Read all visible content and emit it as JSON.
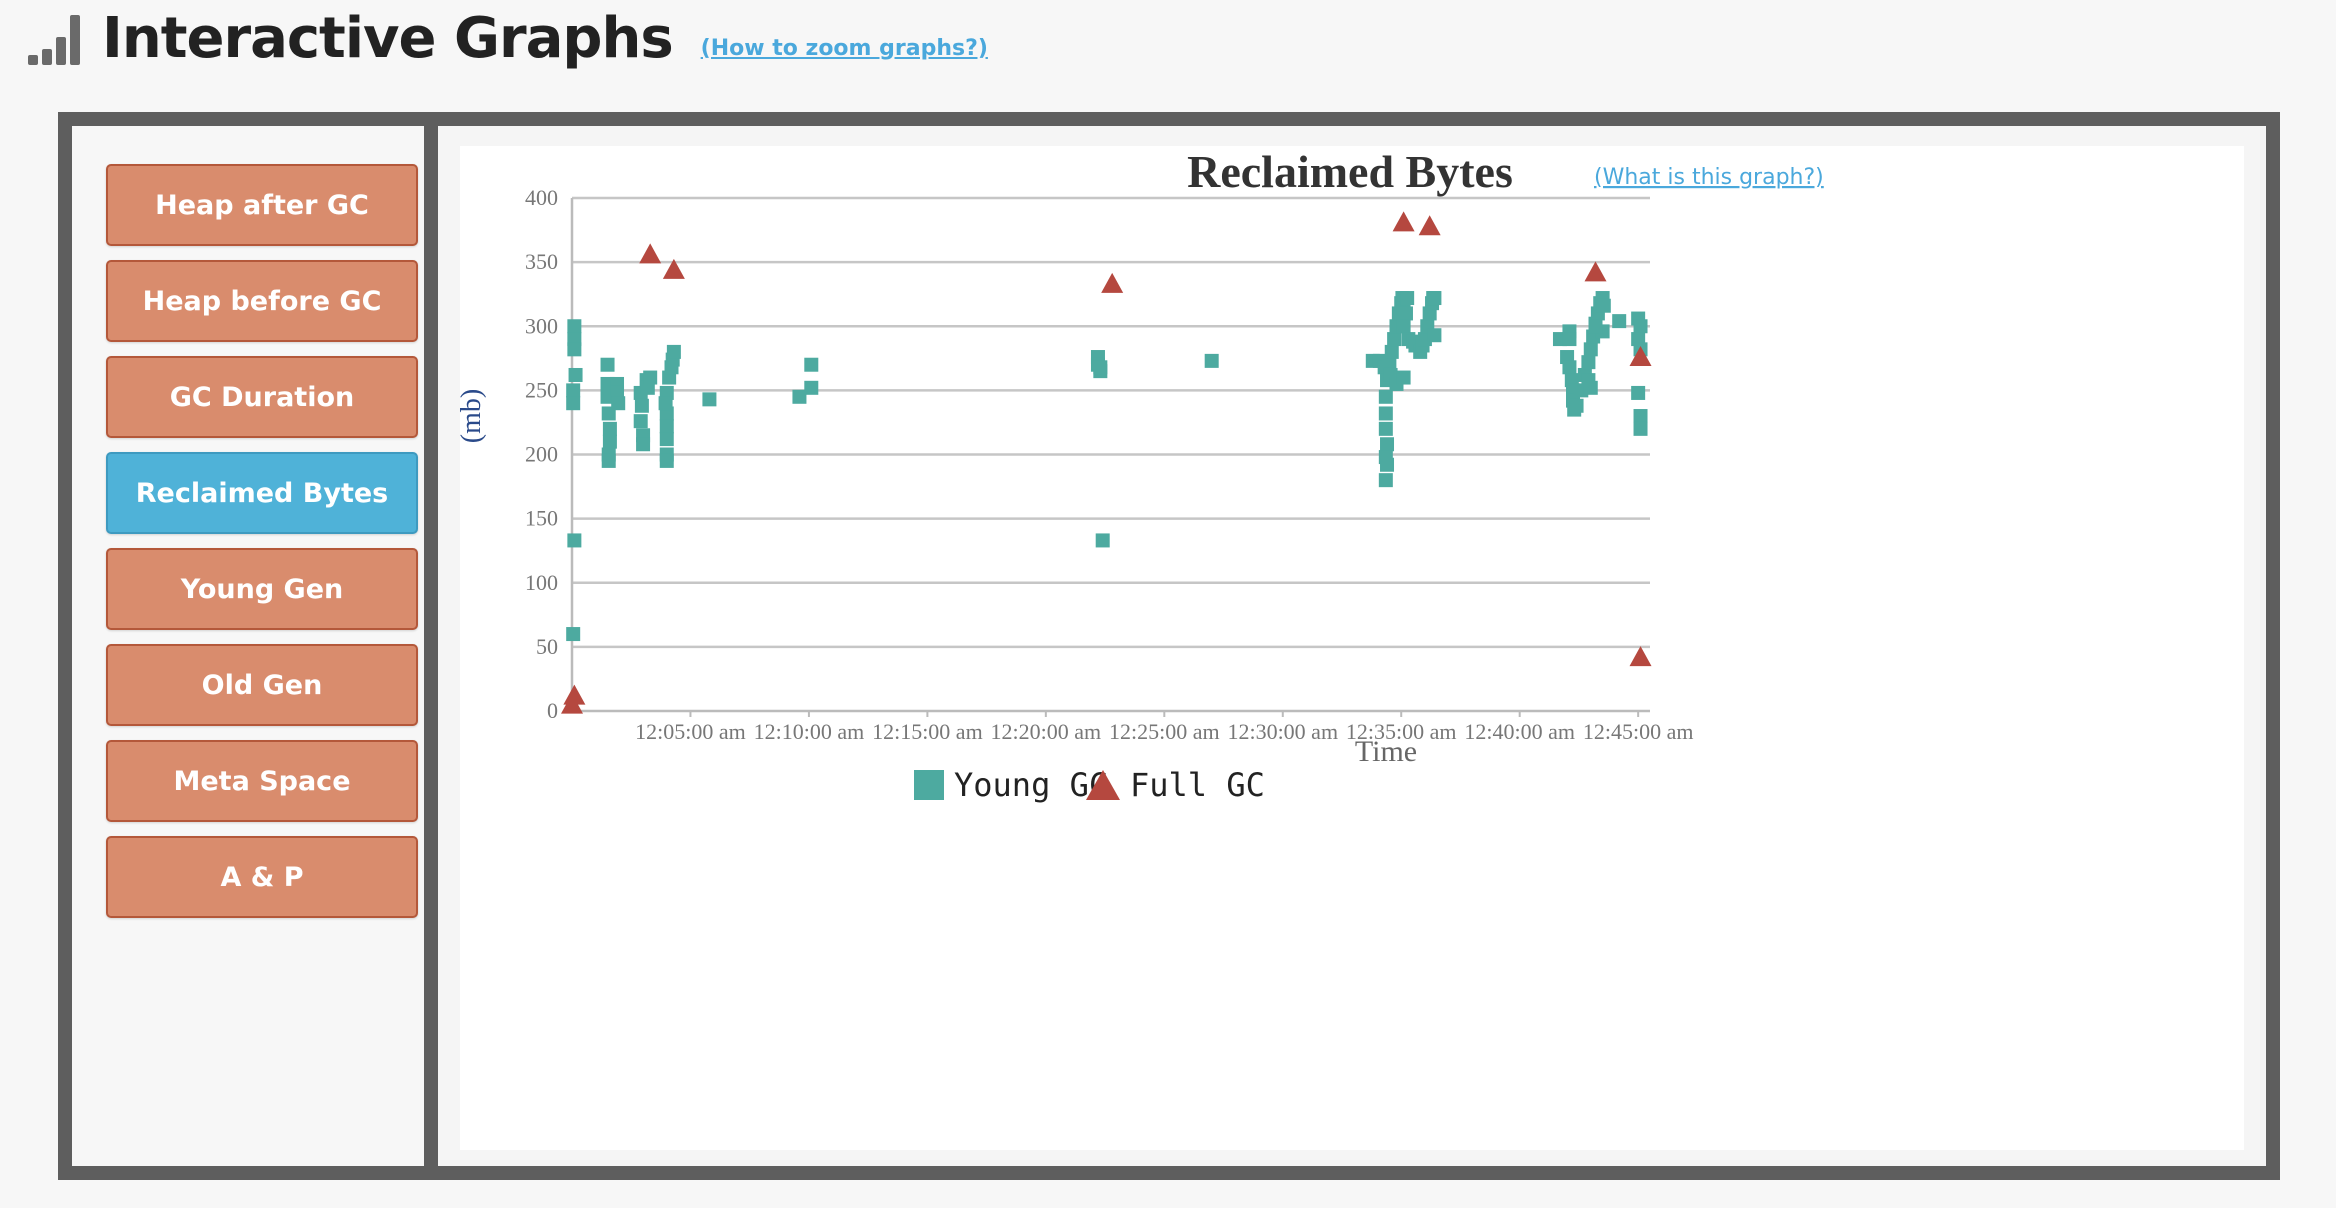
{
  "header": {
    "title": "Interactive Graphs",
    "help_link": "(How to zoom graphs?)",
    "icon": "signal-bars-icon"
  },
  "sidebar": {
    "items": [
      {
        "label": "Heap after GC",
        "active": false
      },
      {
        "label": "Heap before GC",
        "active": false
      },
      {
        "label": "GC Duration",
        "active": false
      },
      {
        "label": "Reclaimed Bytes",
        "active": true
      },
      {
        "label": "Young Gen",
        "active": false
      },
      {
        "label": "Old Gen",
        "active": false
      },
      {
        "label": "Meta Space",
        "active": false
      },
      {
        "label": "A & P",
        "active": false
      }
    ]
  },
  "colors": {
    "button": "#d98c6d",
    "button_border": "#b4583a",
    "button_active": "#4fb2d8",
    "young_gc": "#4daaa0",
    "full_gc": "#b5483f",
    "link": "#4aa8dc",
    "frame": "#5e5e5e"
  },
  "chart_data": {
    "type": "scatter",
    "title": "Reclaimed Bytes",
    "help_link": "(What is this graph?)",
    "xlabel": "Time",
    "ylabel": "(mb)",
    "x_unit": "minutes after 12:00:00 am",
    "xlim": [
      0,
      45.5
    ],
    "ylim": [
      0,
      400
    ],
    "yticks": [
      0,
      50,
      100,
      150,
      200,
      250,
      300,
      350,
      400
    ],
    "xticks": [
      {
        "x": 5,
        "label": "12:05:00 am"
      },
      {
        "x": 10,
        "label": "12:10:00 am"
      },
      {
        "x": 15,
        "label": "12:15:00 am"
      },
      {
        "x": 20,
        "label": "12:20:00 am"
      },
      {
        "x": 25,
        "label": "12:25:00 am"
      },
      {
        "x": 30,
        "label": "12:30:00 am"
      },
      {
        "x": 35,
        "label": "12:35:00 am"
      },
      {
        "x": 40,
        "label": "12:40:00 am"
      },
      {
        "x": 45,
        "label": "12:45:00 am"
      }
    ],
    "grid": true,
    "legend_position": "bottom-center",
    "series": [
      {
        "name": "Young GC",
        "marker": "square",
        "color": "#4daaa0",
        "points": [
          [
            0.1,
            300
          ],
          [
            0.1,
            290
          ],
          [
            0.1,
            282
          ],
          [
            0.15,
            262
          ],
          [
            0.05,
            250
          ],
          [
            0.05,
            240
          ],
          [
            0.1,
            133
          ],
          [
            0.05,
            60
          ],
          [
            1.5,
            270
          ],
          [
            1.5,
            255
          ],
          [
            1.5,
            245
          ],
          [
            1.55,
            232
          ],
          [
            1.6,
            220
          ],
          [
            1.6,
            210
          ],
          [
            1.55,
            200
          ],
          [
            1.55,
            195
          ],
          [
            1.9,
            255
          ],
          [
            1.9,
            248
          ],
          [
            1.95,
            240
          ],
          [
            2.9,
            248
          ],
          [
            2.95,
            238
          ],
          [
            2.9,
            226
          ],
          [
            3.0,
            215
          ],
          [
            3.0,
            208
          ],
          [
            3.15,
            258
          ],
          [
            3.2,
            252
          ],
          [
            3.3,
            260
          ],
          [
            4.0,
            248
          ],
          [
            4.1,
            260
          ],
          [
            4.2,
            268
          ],
          [
            4.25,
            274
          ],
          [
            4.3,
            280
          ],
          [
            4.0,
            232
          ],
          [
            4.0,
            222
          ],
          [
            4.0,
            212
          ],
          [
            4.0,
            200
          ],
          [
            4.0,
            195
          ],
          [
            3.95,
            240
          ],
          [
            5.8,
            243
          ],
          [
            9.6,
            245
          ],
          [
            10.1,
            252
          ],
          [
            10.1,
            270
          ],
          [
            22.2,
            276
          ],
          [
            22.2,
            270
          ],
          [
            22.3,
            265
          ],
          [
            22.3,
            268
          ],
          [
            22.4,
            133
          ],
          [
            27.0,
            273
          ],
          [
            33.8,
            273
          ],
          [
            34.1,
            273
          ],
          [
            34.3,
            268
          ],
          [
            34.4,
            258
          ],
          [
            34.35,
            245
          ],
          [
            34.35,
            232
          ],
          [
            34.35,
            220
          ],
          [
            34.4,
            208
          ],
          [
            34.35,
            198
          ],
          [
            34.4,
            192
          ],
          [
            34.35,
            180
          ],
          [
            34.5,
            270
          ],
          [
            34.6,
            280
          ],
          [
            34.7,
            290
          ],
          [
            34.8,
            300
          ],
          [
            34.9,
            310
          ],
          [
            35.0,
            318
          ],
          [
            35.05,
            322
          ],
          [
            35.1,
            314
          ],
          [
            35.2,
            310
          ],
          [
            35.25,
            322
          ],
          [
            34.55,
            262
          ],
          [
            34.8,
            255
          ],
          [
            35.1,
            300
          ],
          [
            35.3,
            290
          ],
          [
            35.5,
            288
          ],
          [
            35.6,
            285
          ],
          [
            35.8,
            280
          ],
          [
            35.9,
            285
          ],
          [
            36.0,
            290
          ],
          [
            36.1,
            300
          ],
          [
            36.2,
            310
          ],
          [
            36.3,
            318
          ],
          [
            36.35,
            322
          ],
          [
            36.4,
            322
          ],
          [
            35.1,
            260
          ],
          [
            36.4,
            293
          ],
          [
            41.7,
            290
          ],
          [
            42.1,
            296
          ],
          [
            42.1,
            290
          ],
          [
            42.0,
            276
          ],
          [
            42.1,
            268
          ],
          [
            42.2,
            258
          ],
          [
            42.25,
            250
          ],
          [
            42.25,
            242
          ],
          [
            42.3,
            235
          ],
          [
            42.4,
            238
          ],
          [
            42.6,
            250
          ],
          [
            42.75,
            262
          ],
          [
            42.9,
            272
          ],
          [
            43.0,
            282
          ],
          [
            43.1,
            292
          ],
          [
            43.2,
            302
          ],
          [
            43.3,
            310
          ],
          [
            43.4,
            318
          ],
          [
            43.5,
            322
          ],
          [
            43.55,
            316
          ],
          [
            43.5,
            296
          ],
          [
            43.0,
            252
          ],
          [
            42.9,
            258
          ],
          [
            43.2,
            300
          ],
          [
            44.2,
            304
          ],
          [
            45.0,
            306
          ],
          [
            45.1,
            300
          ],
          [
            45.0,
            290
          ],
          [
            45.1,
            282
          ],
          [
            45.0,
            248
          ],
          [
            45.1,
            230
          ],
          [
            45.1,
            220
          ]
        ]
      },
      {
        "name": "Full GC",
        "marker": "triangle",
        "color": "#b5483f",
        "points": [
          [
            0.1,
            12
          ],
          [
            0.0,
            5
          ],
          [
            3.3,
            356
          ],
          [
            4.3,
            344
          ],
          [
            22.8,
            333
          ],
          [
            35.1,
            381
          ],
          [
            36.2,
            378
          ],
          [
            43.2,
            342
          ],
          [
            45.1,
            276
          ],
          [
            45.1,
            42
          ]
        ]
      }
    ]
  }
}
